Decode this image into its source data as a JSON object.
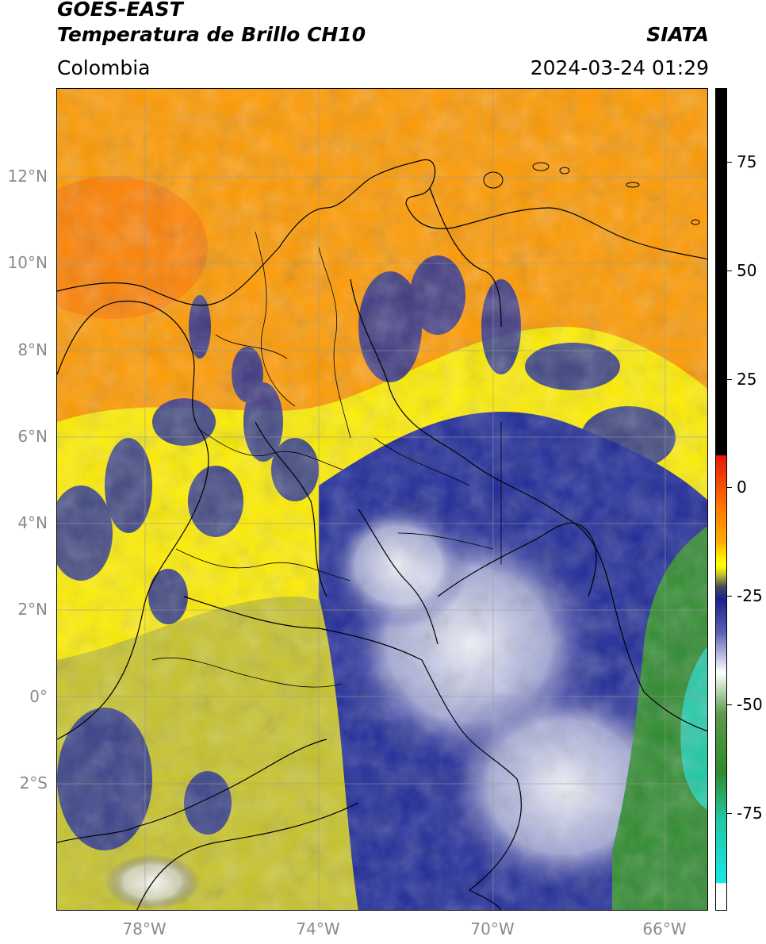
{
  "header": {
    "satellite": "GOES-EAST",
    "product": "Temperatura de Brillo CH10",
    "region": "Colombia",
    "agency": "SIATA",
    "datetime": "2024-03-24 01:29"
  },
  "axes": {
    "lat_labels": [
      "12°N",
      "10°N",
      "8°N",
      "6°N",
      "4°N",
      "2°N",
      "0°",
      "2°S"
    ],
    "lon_labels": [
      "78°W",
      "74°W",
      "70°W",
      "66°W"
    ]
  },
  "colorbar": {
    "labels": [
      "75",
      "50",
      "25",
      "0",
      "-25",
      "-50",
      "-75"
    ],
    "colors": {
      "black": "#000000",
      "red": "#e8170a",
      "orange": "#ff9900",
      "yellow": "#ffff00",
      "olive": "#9a9a20",
      "navy": "#1b1f8f",
      "white": "#ffffff",
      "green": "#2e8b2e",
      "teal": "#21c9a6",
      "cyan": "#18e6e6"
    }
  }
}
